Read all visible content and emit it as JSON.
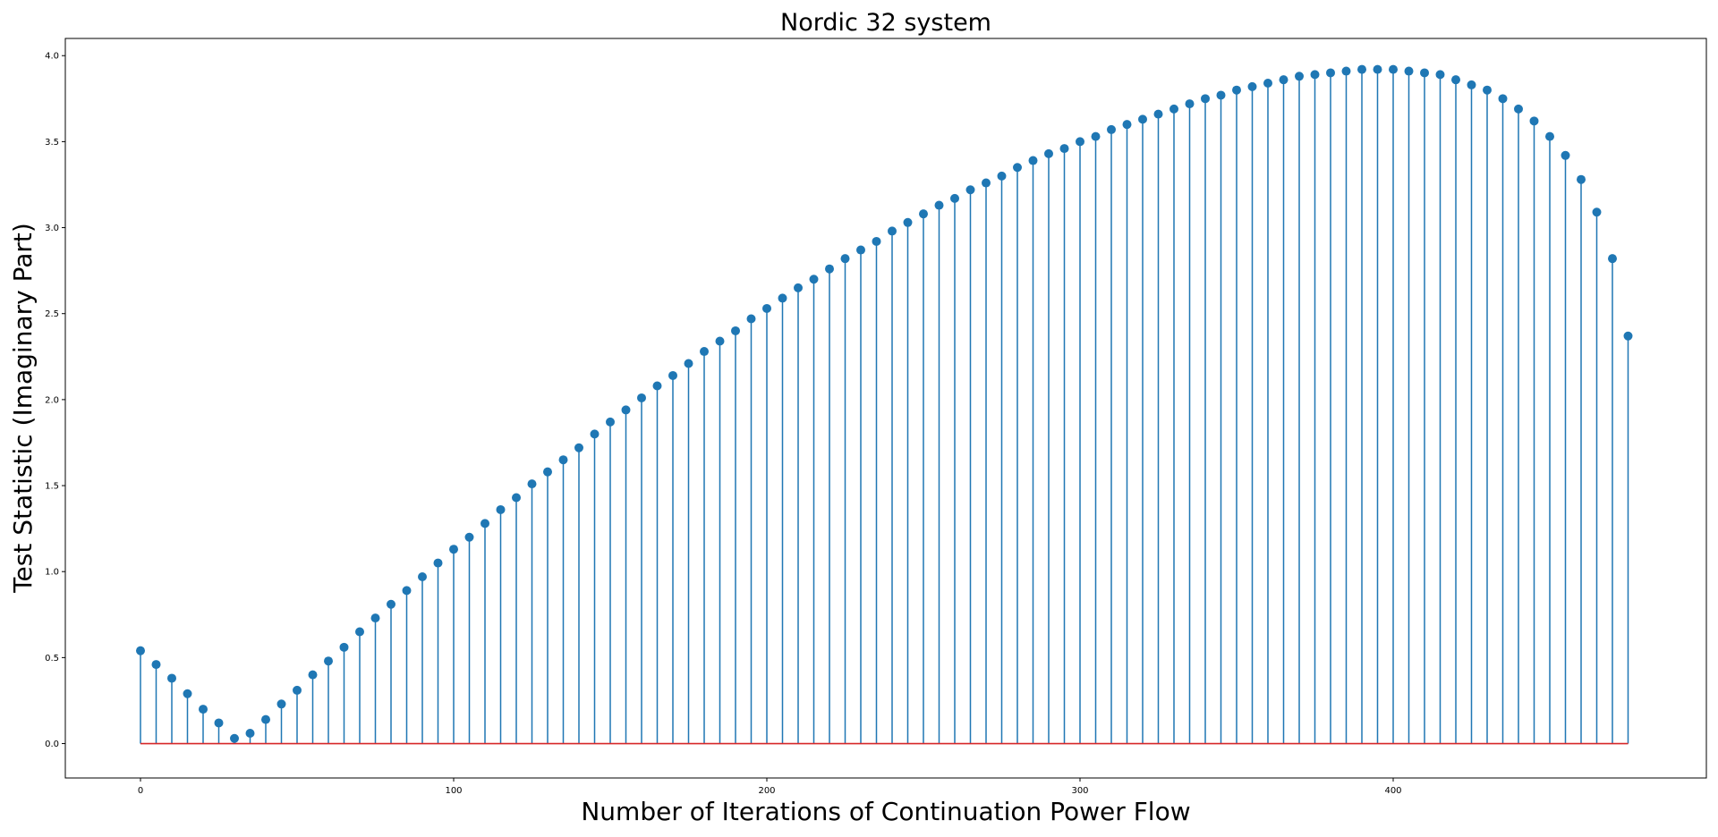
{
  "chart_data": {
    "type": "stem",
    "title": "Nordic 32 system",
    "xlabel": "Number of Iterations of Continuation Power Flow",
    "ylabel": "Test Statistic (Imaginary Part)",
    "xlim": [
      -24,
      500
    ],
    "ylim": [
      -0.2,
      4.1
    ],
    "xticks": [
      0,
      100,
      200,
      300,
      400
    ],
    "yticks": [
      0.0,
      0.5,
      1.0,
      1.5,
      2.0,
      2.5,
      3.0,
      3.5,
      4.0
    ],
    "xtick_labels": [
      "0",
      "100",
      "200",
      "300",
      "400"
    ],
    "ytick_labels": [
      "0.0",
      "0.5",
      "1.0",
      "1.5",
      "2.0",
      "2.5",
      "3.0",
      "3.5",
      "4.0"
    ],
    "grid": false,
    "baseline": 0,
    "colors": {
      "stem": "#1f77b4",
      "marker": "#1f77b4",
      "baseline": "#d62728"
    },
    "x": [
      0,
      5,
      10,
      15,
      20,
      25,
      30,
      35,
      40,
      45,
      50,
      55,
      60,
      65,
      70,
      75,
      80,
      85,
      90,
      95,
      100,
      105,
      110,
      115,
      120,
      125,
      130,
      135,
      140,
      145,
      150,
      155,
      160,
      165,
      170,
      175,
      180,
      185,
      190,
      195,
      200,
      205,
      210,
      215,
      220,
      225,
      230,
      235,
      240,
      245,
      250,
      255,
      260,
      265,
      270,
      275,
      280,
      285,
      290,
      295,
      300,
      305,
      310,
      315,
      320,
      325,
      330,
      335,
      340,
      345,
      350,
      355,
      360,
      365,
      370,
      375,
      380,
      385,
      390,
      395,
      400,
      405,
      410,
      415,
      420,
      425,
      430,
      435,
      440,
      445,
      450,
      455,
      460,
      465,
      470,
      475
    ],
    "y": [
      0.54,
      0.46,
      0.38,
      0.29,
      0.2,
      0.12,
      0.03,
      0.06,
      0.14,
      0.23,
      0.31,
      0.4,
      0.48,
      0.56,
      0.65,
      0.73,
      0.81,
      0.89,
      0.97,
      1.05,
      1.13,
      1.2,
      1.28,
      1.36,
      1.43,
      1.51,
      1.58,
      1.65,
      1.72,
      1.8,
      1.87,
      1.94,
      2.01,
      2.08,
      2.14,
      2.21,
      2.28,
      2.34,
      2.4,
      2.47,
      2.53,
      2.59,
      2.65,
      2.7,
      2.76,
      2.82,
      2.87,
      2.92,
      2.98,
      3.03,
      3.08,
      3.13,
      3.17,
      3.22,
      3.26,
      3.3,
      3.35,
      3.39,
      3.43,
      3.46,
      3.5,
      3.53,
      3.57,
      3.6,
      3.63,
      3.66,
      3.69,
      3.72,
      3.75,
      3.77,
      3.8,
      3.82,
      3.84,
      3.86,
      3.88,
      3.89,
      3.9,
      3.91,
      3.92,
      3.92,
      3.92,
      3.91,
      3.9,
      3.89,
      3.86,
      3.83,
      3.8,
      3.75,
      3.69,
      3.62,
      3.53,
      3.42,
      3.28,
      3.09,
      2.82,
      2.37
    ]
  }
}
